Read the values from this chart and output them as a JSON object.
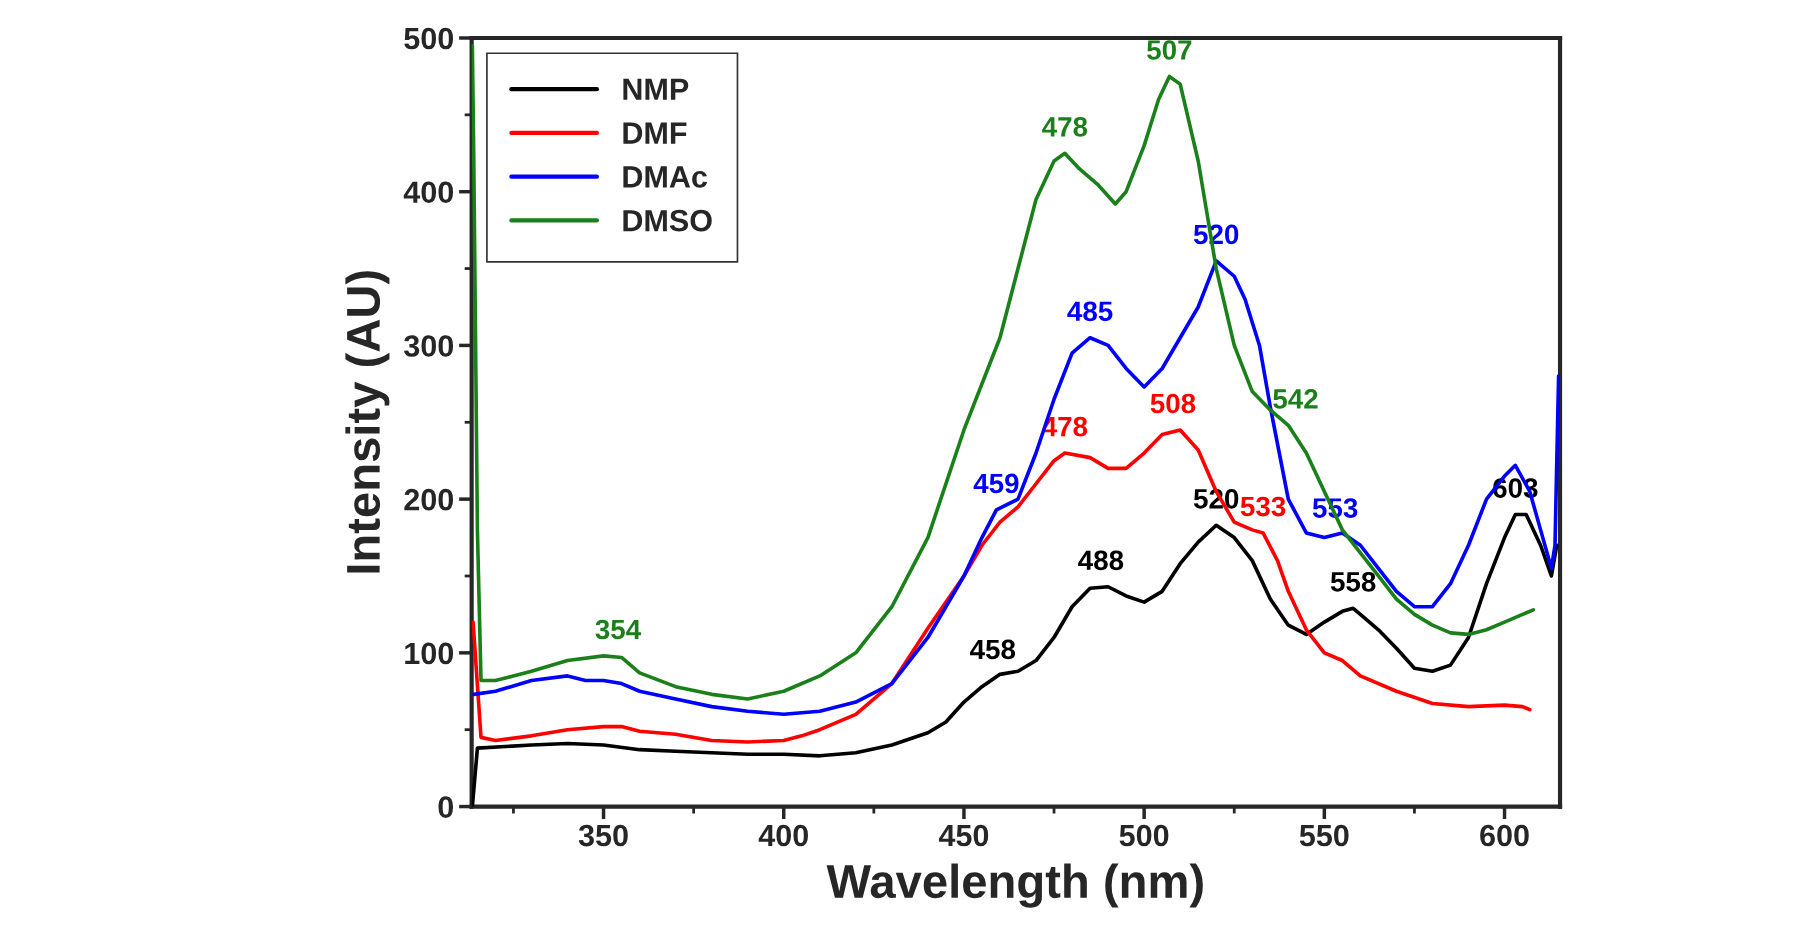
{
  "chart_data": {
    "type": "line",
    "xlabel": "Wavelength (nm)",
    "ylabel": "Intensity (AU)",
    "xlim": [
      313.4,
      615.4
    ],
    "xticks": [
      350,
      400,
      450,
      500,
      550,
      600
    ],
    "ylim": [
      0,
      500
    ],
    "yticks": [
      0,
      100,
      200,
      300,
      400,
      500
    ],
    "grid": false,
    "legend": "top left",
    "marker": "none",
    "line_style": "solid",
    "series": [
      {
        "name": "NMP",
        "color": "#000000",
        "x": [
          313.6,
          315,
          330,
          340,
          350,
          360,
          370,
          380,
          390,
          400,
          410,
          420,
          430,
          440,
          445,
          450,
          455,
          460,
          465,
          470,
          475,
          480,
          485,
          490,
          495,
          500,
          505,
          510,
          515,
          520,
          525,
          530,
          535,
          540,
          545,
          550,
          555,
          558,
          560,
          565,
          570,
          575,
          580,
          585,
          590,
          595,
          600,
          603,
          606,
          610,
          613,
          614.5
        ],
        "values": [
          0,
          38,
          40,
          41,
          40,
          37,
          36,
          35,
          34,
          34,
          33,
          35,
          40,
          48,
          55,
          68,
          78,
          86,
          88,
          95,
          110,
          130,
          142,
          143,
          137,
          133,
          140,
          158,
          172,
          183,
          175,
          160,
          135,
          118,
          112,
          120,
          127,
          129,
          125,
          115,
          103,
          90,
          88,
          92,
          110,
          145,
          175,
          190,
          190,
          170,
          150,
          170
        ]
      },
      {
        "name": "DMF",
        "color": "#ff0000",
        "x": [
          313.8,
          316,
          320,
          330,
          340,
          350,
          355,
          360,
          370,
          380,
          390,
          400,
          405,
          410,
          420,
          430,
          440,
          450,
          455,
          460,
          465,
          470,
          475,
          478,
          485,
          490,
          495,
          500,
          505,
          510,
          515,
          520,
          525,
          530,
          533,
          537,
          540,
          545,
          550,
          555,
          560,
          570,
          580,
          590,
          600,
          605,
          607
        ],
        "values": [
          120,
          45,
          43,
          46,
          50,
          52,
          52,
          49,
          47,
          43,
          42,
          43,
          46,
          50,
          60,
          80,
          116,
          150,
          170,
          185,
          195,
          210,
          225,
          230,
          227,
          220,
          220,
          230,
          242,
          245,
          232,
          205,
          185,
          180,
          178,
          160,
          140,
          115,
          100,
          95,
          85,
          75,
          67,
          65,
          66,
          65,
          63
        ]
      },
      {
        "name": "DMAc",
        "color": "#0000ff",
        "x": [
          314,
          320,
          330,
          340,
          345,
          350,
          355,
          360,
          370,
          380,
          390,
          400,
          410,
          420,
          430,
          440,
          450,
          455,
          459,
          465,
          470,
          475,
          480,
          485,
          490,
          495,
          500,
          505,
          510,
          515,
          520,
          525,
          528,
          532,
          535,
          540,
          545,
          550,
          555,
          560,
          565,
          570,
          575,
          580,
          585,
          590,
          595,
          600,
          603,
          607,
          610,
          613,
          614,
          615
        ],
        "values": [
          73,
          75,
          82,
          85,
          82,
          82,
          80,
          75,
          70,
          65,
          62,
          60,
          62,
          68,
          80,
          110,
          150,
          175,
          193,
          200,
          230,
          265,
          295,
          305,
          300,
          285,
          273,
          285,
          305,
          325,
          355,
          345,
          330,
          300,
          260,
          200,
          178,
          175,
          178,
          170,
          155,
          140,
          130,
          130,
          145,
          170,
          200,
          215,
          222,
          205,
          180,
          155,
          170,
          280
        ]
      },
      {
        "name": "DMSO",
        "color": "#1a8019",
        "x": [
          313.6,
          314,
          315,
          316,
          320,
          330,
          340,
          350,
          355,
          360,
          370,
          380,
          390,
          400,
          410,
          420,
          430,
          440,
          450,
          460,
          465,
          470,
          475,
          478,
          482,
          487,
          492,
          495,
          500,
          504,
          507,
          510,
          515,
          520,
          525,
          530,
          535,
          540,
          545,
          550,
          555,
          560,
          565,
          570,
          575,
          580,
          585,
          590,
          595,
          600,
          605,
          608
        ],
        "values": [
          495,
          420,
          180,
          82,
          82,
          88,
          95,
          98,
          97,
          87,
          78,
          73,
          70,
          75,
          85,
          100,
          130,
          175,
          245,
          305,
          350,
          395,
          420,
          425,
          415,
          405,
          392,
          400,
          430,
          460,
          475,
          470,
          420,
          350,
          300,
          270,
          258,
          248,
          230,
          205,
          180,
          165,
          150,
          135,
          125,
          118,
          113,
          112,
          115,
          120,
          125,
          128
        ]
      }
    ],
    "annotations": [
      {
        "text": "354",
        "x": 354,
        "y": 98
      },
      {
        "text": "458",
        "x": 458,
        "y": 85
      },
      {
        "text": "488",
        "x": 488,
        "y": 143
      },
      {
        "text": "520",
        "x": 520,
        "y": 183
      },
      {
        "text": "558",
        "x": 558,
        "y": 129
      },
      {
        "text": "603",
        "x": 603,
        "y": 190
      },
      {
        "text": "478",
        "x": 478,
        "y": 230
      },
      {
        "text": "508",
        "x": 508,
        "y": 245
      },
      {
        "text": "533",
        "x": 533,
        "y": 178
      },
      {
        "text": "459",
        "x": 459,
        "y": 193
      },
      {
        "text": "485",
        "x": 485,
        "y": 305
      },
      {
        "text": "520",
        "x": 520,
        "y": 355
      },
      {
        "text": "553",
        "x": 553,
        "y": 177
      },
      {
        "text": "478",
        "x": 478,
        "y": 425
      },
      {
        "text": "507",
        "x": 507,
        "y": 475
      },
      {
        "text": "542",
        "x": 542,
        "y": 248
      }
    ]
  }
}
